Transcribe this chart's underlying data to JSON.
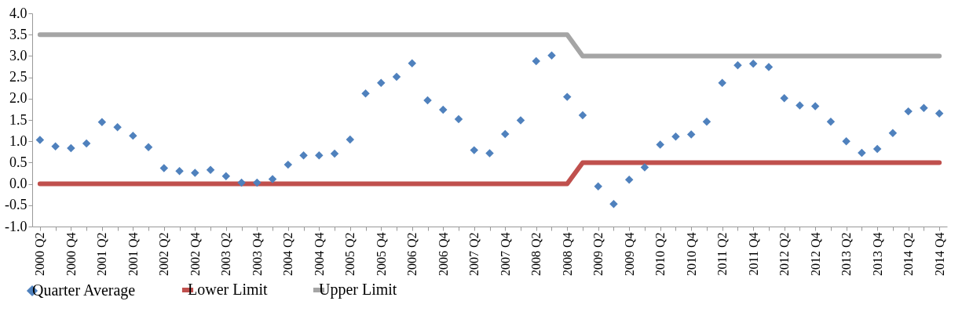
{
  "chart_data": {
    "type": "scatter",
    "categories": [
      "2000 Q2",
      null,
      "2000 Q4",
      null,
      "2001 Q2",
      null,
      "2001 Q4",
      null,
      "2002 Q2",
      null,
      "2002 Q4",
      null,
      "2003 Q2",
      null,
      "2003 Q4",
      null,
      "2004 Q2",
      null,
      "2004 Q4",
      null,
      "2005 Q2",
      null,
      "2005 Q4",
      null,
      "2006 Q2",
      null,
      "2006 Q4",
      null,
      "2007 Q2",
      null,
      "2007 Q4",
      null,
      "2008 Q2",
      null,
      "2008 Q4",
      null,
      "2009 Q2",
      null,
      "2009 Q4",
      null,
      "2010 Q2",
      null,
      "2010 Q4",
      null,
      "2011 Q2",
      null,
      "2011 Q4",
      null,
      "2012 Q2",
      null,
      "2012 Q4",
      null,
      "2013 Q2",
      null,
      "2013 Q4",
      null,
      "2014 Q2",
      null,
      "2014 Q4"
    ],
    "series": [
      {
        "name": "Quarter Average",
        "marker": "diamond",
        "color": "#4f81bd",
        "values": [
          1.03,
          0.88,
          0.84,
          0.95,
          1.45,
          1.33,
          1.13,
          0.86,
          0.37,
          0.3,
          0.26,
          0.33,
          0.18,
          0.03,
          0.03,
          0.11,
          0.45,
          0.67,
          0.67,
          0.71,
          1.04,
          2.12,
          2.37,
          2.51,
          2.83,
          1.96,
          1.74,
          1.52,
          0.79,
          0.72,
          1.17,
          1.49,
          2.88,
          3.01,
          2.04,
          1.61,
          -0.06,
          -0.47,
          0.1,
          0.39,
          0.92,
          1.11,
          1.16,
          1.46,
          2.37,
          2.78,
          2.82,
          2.74,
          2.01,
          1.84,
          1.82,
          1.46,
          1.0,
          0.73,
          0.82,
          1.19,
          1.7,
          1.78,
          1.65
        ]
      },
      {
        "name": "Lower Limit",
        "type": "line",
        "color": "#c0504d",
        "values": [
          0,
          0,
          0,
          0,
          0,
          0,
          0,
          0,
          0,
          0,
          0,
          0,
          0,
          0,
          0,
          0,
          0,
          0,
          0,
          0,
          0,
          0,
          0,
          0,
          0,
          0,
          0,
          0,
          0,
          0,
          0,
          0,
          0,
          0,
          0,
          0.5,
          0.5,
          0.5,
          0.5,
          0.5,
          0.5,
          0.5,
          0.5,
          0.5,
          0.5,
          0.5,
          0.5,
          0.5,
          0.5,
          0.5,
          0.5,
          0.5,
          0.5,
          0.5,
          0.5,
          0.5,
          0.5,
          0.5,
          0.5
        ]
      },
      {
        "name": "Upper Limit",
        "type": "line",
        "color": "#a5a5a5",
        "values": [
          3.5,
          3.5,
          3.5,
          3.5,
          3.5,
          3.5,
          3.5,
          3.5,
          3.5,
          3.5,
          3.5,
          3.5,
          3.5,
          3.5,
          3.5,
          3.5,
          3.5,
          3.5,
          3.5,
          3.5,
          3.5,
          3.5,
          3.5,
          3.5,
          3.5,
          3.5,
          3.5,
          3.5,
          3.5,
          3.5,
          3.5,
          3.5,
          3.5,
          3.5,
          3.5,
          3,
          3,
          3,
          3,
          3,
          3,
          3,
          3,
          3,
          3,
          3,
          3,
          3,
          3,
          3,
          3,
          3,
          3,
          3,
          3,
          3,
          3,
          3,
          3
        ]
      }
    ],
    "ylim": [
      -1,
      4
    ],
    "yticks": [
      {
        "value": -1,
        "label": "-1.0"
      },
      -0.5,
      {
        "value": 0,
        "label": "0.0"
      },
      0.5,
      {
        "value": 1,
        "label": "1.0"
      },
      1.5,
      {
        "value": 2,
        "label": "2.0"
      },
      2.5,
      {
        "value": 3,
        "label": "3.0"
      },
      3.5,
      {
        "value": 4,
        "label": "4.0"
      }
    ],
    "grid": false,
    "legend": "bottom"
  }
}
